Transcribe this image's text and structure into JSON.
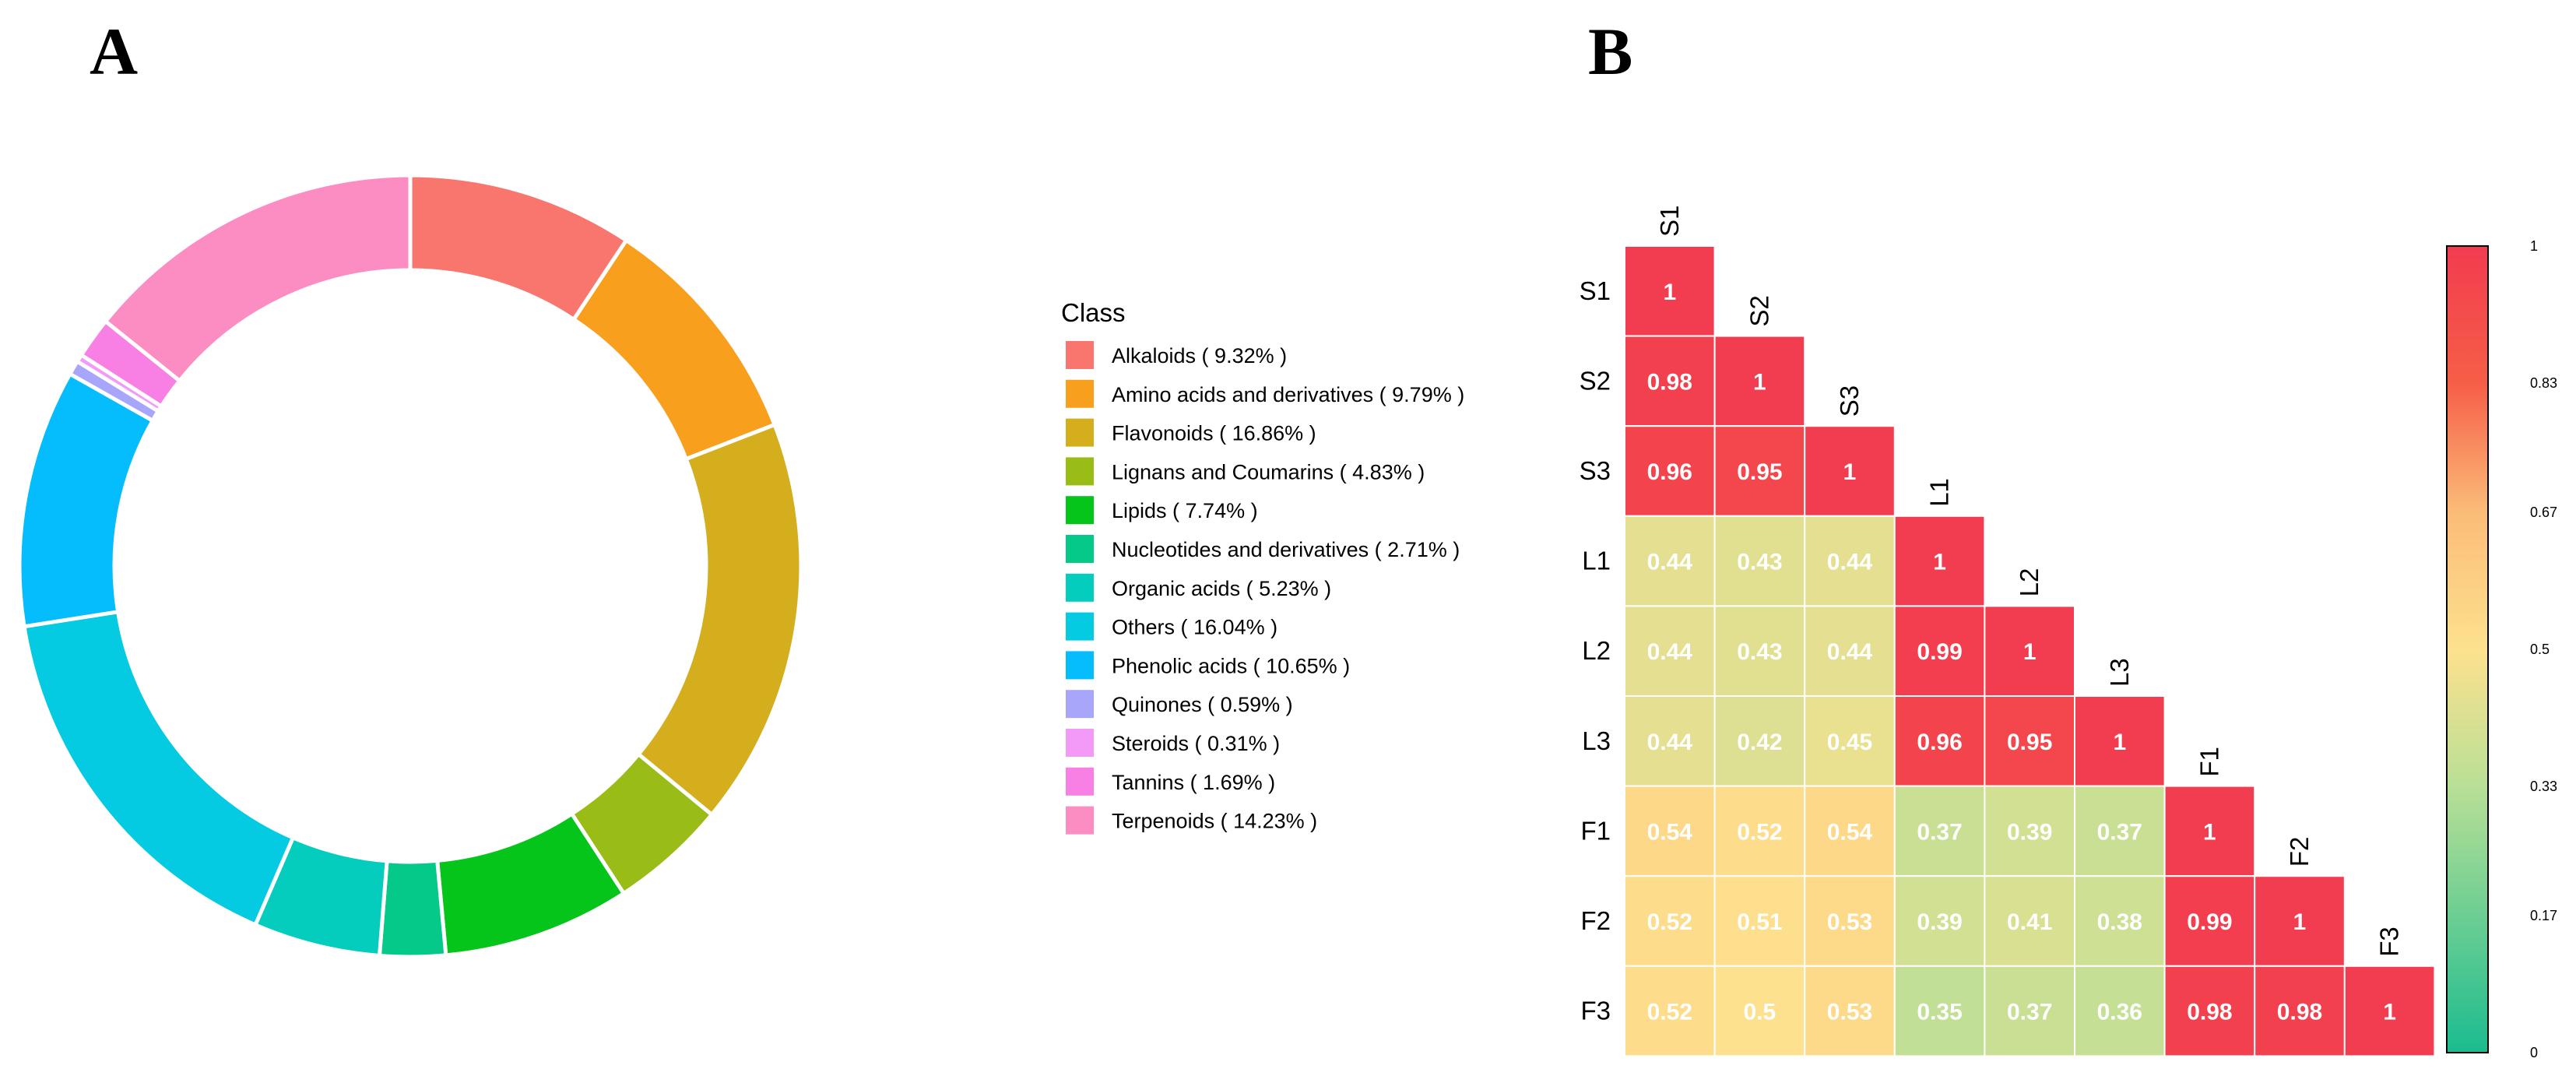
{
  "panels": {
    "a_label": "A",
    "b_label": "B"
  },
  "chart_data": [
    {
      "type": "pie",
      "style": "donut",
      "legend_title": "Class",
      "legend_placement": "right",
      "slices": [
        {
          "name": "Alkaloids",
          "value": 9.32,
          "label": "Alkaloids ( 9.32% )",
          "color": "#F8766D"
        },
        {
          "name": "Amino acids and derivatives",
          "value": 9.79,
          "label": "Amino acids and derivatives ( 9.79% )",
          "color": "#F8A01D"
        },
        {
          "name": "Flavonoids",
          "value": 16.86,
          "label": "Flavonoids ( 16.86% )",
          "color": "#D5AE1E"
        },
        {
          "name": "Lignans and Coumarins",
          "value": 4.83,
          "label": "Lignans and Coumarins ( 4.83% )",
          "color": "#9ABC17"
        },
        {
          "name": "Lipids",
          "value": 7.74,
          "label": "Lipids ( 7.74% )",
          "color": "#05C41A"
        },
        {
          "name": "Nucleotides and derivatives",
          "value": 2.71,
          "label": "Nucleotides and derivatives ( 2.71% )",
          "color": "#05C989"
        },
        {
          "name": "Organic acids",
          "value": 5.23,
          "label": "Organic acids ( 5.23% )",
          "color": "#05CDBD"
        },
        {
          "name": "Others",
          "value": 16.04,
          "label": "Others ( 16.04% )",
          "color": "#05CBE2"
        },
        {
          "name": "Phenolic acids",
          "value": 10.65,
          "label": "Phenolic acids ( 10.65% )",
          "color": "#05BDFC"
        },
        {
          "name": "Quinones",
          "value": 0.59,
          "label": "Quinones ( 0.59% )",
          "color": "#A7A6FA"
        },
        {
          "name": "Steroids",
          "value": 0.31,
          "label": "Steroids ( 0.31% )",
          "color": "#F39AF8"
        },
        {
          "name": "Tannins",
          "value": 1.69,
          "label": "Tannins ( 1.69% )",
          "color": "#F880E5"
        },
        {
          "name": "Terpenoids",
          "value": 14.23,
          "label": "Terpenoids ( 14.23% )",
          "color": "#FC8DC3"
        }
      ]
    },
    {
      "type": "heatmap",
      "style": "lower-triangle correlation",
      "labels": [
        "S1",
        "S2",
        "S3",
        "L1",
        "L2",
        "L3",
        "F1",
        "F2",
        "F3"
      ],
      "matrix": [
        [
          1
        ],
        [
          0.98,
          1
        ],
        [
          0.96,
          0.95,
          1
        ],
        [
          0.44,
          0.43,
          0.44,
          1
        ],
        [
          0.44,
          0.43,
          0.44,
          0.99,
          1
        ],
        [
          0.44,
          0.42,
          0.45,
          0.96,
          0.95,
          1
        ],
        [
          0.54,
          0.52,
          0.54,
          0.37,
          0.39,
          0.37,
          1
        ],
        [
          0.52,
          0.51,
          0.53,
          0.39,
          0.41,
          0.38,
          0.99,
          1
        ],
        [
          0.52,
          0.5,
          0.53,
          0.35,
          0.37,
          0.36,
          0.98,
          0.98,
          1
        ]
      ],
      "colorbar": {
        "range": [
          0,
          1
        ],
        "ticks": [
          "0",
          "0.17",
          "0.33",
          "0.5",
          "0.67",
          "0.83",
          "1"
        ],
        "stops": [
          {
            "value": 0,
            "color": "#1BBC8F"
          },
          {
            "value": 0.33,
            "color": "#B9DF96"
          },
          {
            "value": 0.5,
            "color": "#FDE18E"
          },
          {
            "value": 0.67,
            "color": "#FBBC78"
          },
          {
            "value": 0.83,
            "color": "#F65E47"
          },
          {
            "value": 1,
            "color": "#F23C50"
          }
        ]
      }
    }
  ]
}
